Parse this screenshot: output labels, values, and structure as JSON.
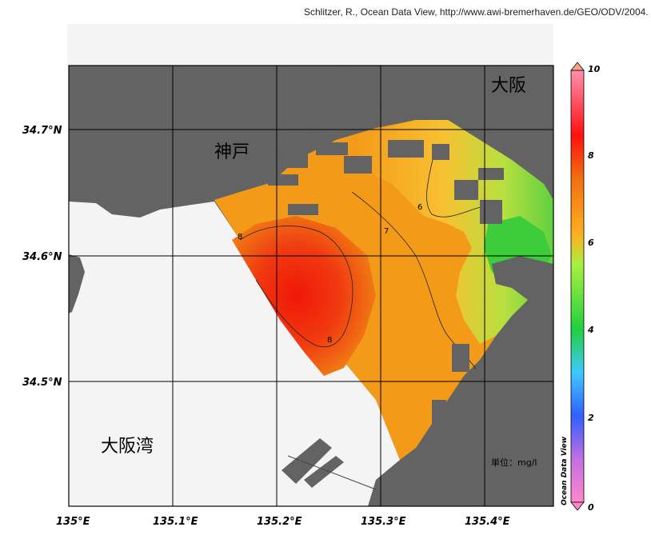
{
  "credit": "Schlitzer, R., Ocean Data View, http://www.awi-bremerhaven.de/GEO/ODV/2004.",
  "map": {
    "lon_ticks": [
      "135°E",
      "135.1°E",
      "135.2°E",
      "135.3°E",
      "135.4°E"
    ],
    "lat_ticks": [
      "34.7°N",
      "34.6°N",
      "34.5°N"
    ],
    "place_labels": {
      "kobe": "神戸",
      "osaka": "大阪",
      "osaka_bay": "大阪湾"
    },
    "unit": "単位：mg/l",
    "contour_labels": [
      "8",
      "7",
      "6",
      "8"
    ]
  },
  "colorbar": {
    "ticks": [
      "10",
      "8",
      "6",
      "4",
      "2",
      "0"
    ],
    "range": [
      0,
      10
    ],
    "title": "Ocean Data View",
    "colors": [
      "#ff80c0",
      "#8000ff",
      "#2050ff",
      "#40c0ff",
      "#20c040",
      "#a0f040",
      "#ffa020",
      "#ff2010",
      "#ff80a0"
    ]
  },
  "colors": {
    "land": "#636363",
    "water_unsampled": "#f4f4f4",
    "high": "#ee2a10",
    "mid": "#f08a10",
    "low": "#99dd33",
    "lowest": "#33cc33"
  }
}
